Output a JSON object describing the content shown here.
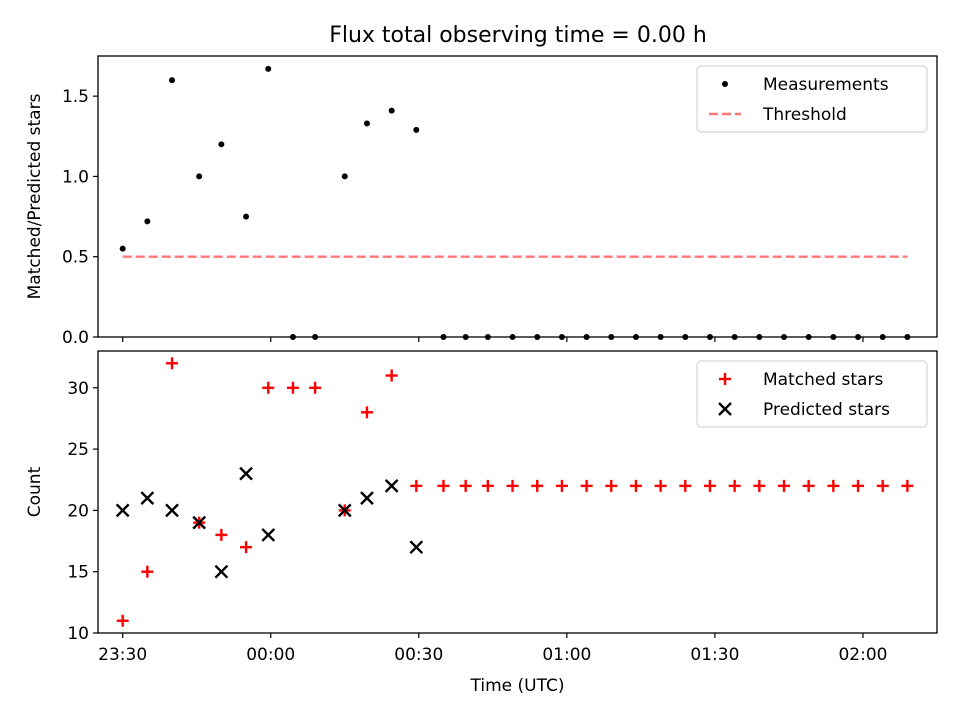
{
  "title": "Flux total observing time = 0.00 h",
  "chart_data": [
    {
      "type": "scatter",
      "title": "Flux total observing time = 0.00 h",
      "xlabel": "",
      "ylabel": "Matched/Predicted stars",
      "ylim": [
        0,
        1.75
      ],
      "yticks": [
        "0.0",
        "0.5",
        "1.0",
        "1.5"
      ],
      "xlim_min": [
        -5,
        165
      ],
      "grid": false,
      "legend_position": "top-right",
      "series": [
        {
          "name": "Measurements",
          "marker": "dot",
          "color": "#000000",
          "x_min": [
            0,
            5,
            10,
            15.5,
            20,
            25,
            29.5,
            34.5,
            39,
            45,
            49.5,
            54.5,
            59.5,
            65,
            69.5,
            74,
            79,
            84,
            89,
            94,
            99,
            104,
            109,
            114,
            119,
            124,
            129,
            134,
            139,
            144,
            149,
            154,
            159
          ],
          "values": [
            0.55,
            0.72,
            1.6,
            1.0,
            1.2,
            0.75,
            1.67,
            0,
            0,
            1.0,
            1.33,
            1.41,
            1.29,
            0,
            0,
            0,
            0,
            0,
            0,
            0,
            0,
            0,
            0,
            0,
            0,
            0,
            0,
            0,
            0,
            0,
            0,
            0,
            0
          ]
        },
        {
          "name": "Threshold",
          "marker": "dashed-line",
          "color": "#ff7777",
          "x_min": [
            0,
            159
          ],
          "values": [
            0.5,
            0.5
          ]
        }
      ]
    },
    {
      "type": "scatter",
      "title": "",
      "xlabel": "Time (UTC)",
      "ylabel": "Count",
      "ylim": [
        10,
        33
      ],
      "yticks": [
        "10",
        "15",
        "20",
        "25",
        "30"
      ],
      "xlim_min": [
        -5,
        165
      ],
      "xtick_labels": [
        "23:30",
        "00:00",
        "00:30",
        "01:00",
        "01:30",
        "02:00"
      ],
      "grid": false,
      "legend_position": "top-right",
      "series": [
        {
          "name": "Matched stars",
          "marker": "plus",
          "color": "#ff0000",
          "x_min": [
            0,
            5,
            10,
            15.5,
            20,
            25,
            29.5,
            34.5,
            39,
            45,
            49.5,
            54.5,
            59.5,
            65,
            69.5,
            74,
            79,
            84,
            89,
            94,
            99,
            104,
            109,
            114,
            119,
            124,
            129,
            134,
            139,
            144,
            149,
            154,
            159
          ],
          "values": [
            11,
            15,
            32,
            19,
            18,
            17,
            30,
            30,
            30,
            20,
            28,
            31,
            22,
            22,
            22,
            22,
            22,
            22,
            22,
            22,
            22,
            22,
            22,
            22,
            22,
            22,
            22,
            22,
            22,
            22,
            22,
            22,
            22
          ]
        },
        {
          "name": "Predicted stars",
          "marker": "x",
          "color": "#000000",
          "x_min": [
            0,
            5,
            10,
            15.5,
            20,
            25,
            29.5,
            45,
            49.5,
            54.5,
            59.5
          ],
          "values": [
            20,
            21,
            20,
            19,
            15,
            23,
            18,
            20,
            21,
            22,
            17
          ]
        }
      ]
    }
  ]
}
